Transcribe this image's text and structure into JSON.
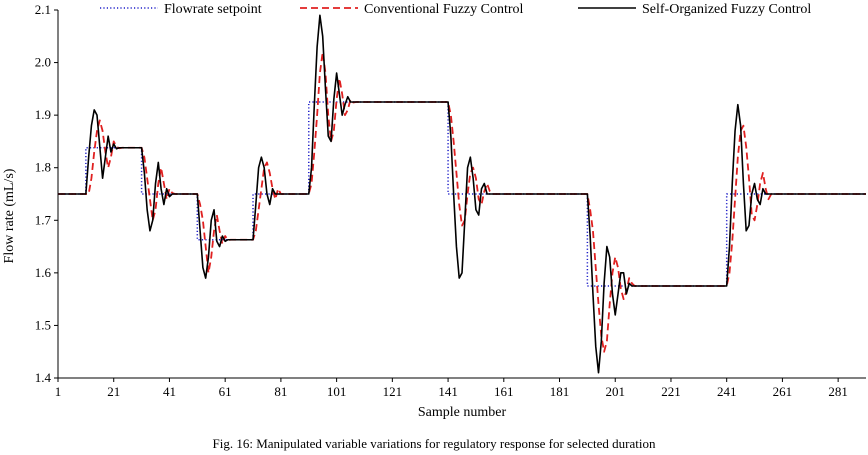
{
  "caption": "Fig. 16: Manipulated variable variations for regulatory response for selected duration",
  "chart_data": {
    "type": "line",
    "title": "",
    "xlabel": "Sample number",
    "ylabel": "Flow rate (mL/s)",
    "xlim": [
      1,
      291
    ],
    "ylim": [
      1.4,
      2.1
    ],
    "xticks": [
      1,
      21,
      41,
      61,
      81,
      101,
      121,
      141,
      161,
      181,
      201,
      221,
      241,
      261,
      281
    ],
    "yticks": [
      1.4,
      1.5,
      1.6,
      1.7,
      1.8,
      1.9,
      2.0,
      2.1
    ],
    "ytick_labels": [
      "1.4",
      "1.5",
      "1.6",
      "1.7",
      "1.8",
      "1.9",
      "2.0",
      "2.1"
    ],
    "grid": false,
    "legend_position": "top",
    "series": [
      {
        "name": "Flowrate setpoint",
        "color": "#1f1fc8",
        "style": "dotted",
        "points": [
          [
            1,
            1.75
          ],
          [
            11,
            1.75
          ],
          [
            11,
            1.838
          ],
          [
            31,
            1.838
          ],
          [
            31,
            1.75
          ],
          [
            51,
            1.75
          ],
          [
            51,
            1.663
          ],
          [
            71,
            1.663
          ],
          [
            71,
            1.75
          ],
          [
            91,
            1.75
          ],
          [
            91,
            1.925
          ],
          [
            141,
            1.925
          ],
          [
            141,
            1.75
          ],
          [
            191,
            1.75
          ],
          [
            191,
            1.575
          ],
          [
            241,
            1.575
          ],
          [
            241,
            1.75
          ],
          [
            291,
            1.75
          ]
        ]
      },
      {
        "name": "Conventional Fuzzy Control",
        "color": "#e02020",
        "style": "dashed",
        "points": [
          [
            1,
            1.75
          ],
          [
            12,
            1.75
          ],
          [
            13,
            1.78
          ],
          [
            14,
            1.83
          ],
          [
            15,
            1.87
          ],
          [
            16,
            1.89
          ],
          [
            17,
            1.87
          ],
          [
            18,
            1.83
          ],
          [
            19,
            1.8
          ],
          [
            20,
            1.82
          ],
          [
            21,
            1.85
          ],
          [
            22,
            1.84
          ],
          [
            23,
            1.837
          ],
          [
            24,
            1.838
          ],
          [
            31,
            1.838
          ],
          [
            32,
            1.82
          ],
          [
            33,
            1.78
          ],
          [
            34,
            1.74
          ],
          [
            35,
            1.7
          ],
          [
            36,
            1.72
          ],
          [
            37,
            1.77
          ],
          [
            38,
            1.8
          ],
          [
            39,
            1.77
          ],
          [
            40,
            1.74
          ],
          [
            41,
            1.76
          ],
          [
            42,
            1.752
          ],
          [
            43,
            1.75
          ],
          [
            51,
            1.75
          ],
          [
            52,
            1.73
          ],
          [
            53,
            1.7
          ],
          [
            54,
            1.65
          ],
          [
            55,
            1.6
          ],
          [
            56,
            1.63
          ],
          [
            57,
            1.68
          ],
          [
            58,
            1.71
          ],
          [
            59,
            1.68
          ],
          [
            60,
            1.655
          ],
          [
            61,
            1.67
          ],
          [
            62,
            1.662
          ],
          [
            63,
            1.663
          ],
          [
            71,
            1.663
          ],
          [
            72,
            1.68
          ],
          [
            73,
            1.72
          ],
          [
            74,
            1.76
          ],
          [
            75,
            1.8
          ],
          [
            76,
            1.81
          ],
          [
            77,
            1.79
          ],
          [
            78,
            1.76
          ],
          [
            79,
            1.74
          ],
          [
            80,
            1.76
          ],
          [
            81,
            1.75
          ],
          [
            91,
            1.75
          ],
          [
            92,
            1.77
          ],
          [
            93,
            1.83
          ],
          [
            94,
            1.9
          ],
          [
            95,
            1.98
          ],
          [
            96,
            2.02
          ],
          [
            97,
            1.98
          ],
          [
            98,
            1.9
          ],
          [
            99,
            1.85
          ],
          [
            100,
            1.87
          ],
          [
            101,
            1.93
          ],
          [
            102,
            1.97
          ],
          [
            103,
            1.94
          ],
          [
            104,
            1.9
          ],
          [
            105,
            1.91
          ],
          [
            106,
            1.93
          ],
          [
            107,
            1.924
          ],
          [
            108,
            1.925
          ],
          [
            141,
            1.925
          ],
          [
            142,
            1.9
          ],
          [
            143,
            1.85
          ],
          [
            144,
            1.79
          ],
          [
            145,
            1.73
          ],
          [
            146,
            1.69
          ],
          [
            147,
            1.7
          ],
          [
            148,
            1.75
          ],
          [
            149,
            1.79
          ],
          [
            150,
            1.8
          ],
          [
            151,
            1.78
          ],
          [
            152,
            1.74
          ],
          [
            153,
            1.73
          ],
          [
            154,
            1.755
          ],
          [
            155,
            1.77
          ],
          [
            156,
            1.755
          ],
          [
            157,
            1.75
          ],
          [
            191,
            1.75
          ],
          [
            192,
            1.72
          ],
          [
            193,
            1.68
          ],
          [
            194,
            1.61
          ],
          [
            195,
            1.54
          ],
          [
            196,
            1.48
          ],
          [
            197,
            1.45
          ],
          [
            198,
            1.47
          ],
          [
            199,
            1.54
          ],
          [
            200,
            1.6
          ],
          [
            201,
            1.63
          ],
          [
            202,
            1.61
          ],
          [
            203,
            1.57
          ],
          [
            204,
            1.55
          ],
          [
            205,
            1.565
          ],
          [
            206,
            1.59
          ],
          [
            207,
            1.58
          ],
          [
            208,
            1.575
          ],
          [
            241,
            1.575
          ],
          [
            242,
            1.6
          ],
          [
            243,
            1.66
          ],
          [
            244,
            1.74
          ],
          [
            245,
            1.82
          ],
          [
            246,
            1.87
          ],
          [
            247,
            1.88
          ],
          [
            248,
            1.84
          ],
          [
            249,
            1.78
          ],
          [
            250,
            1.71
          ],
          [
            251,
            1.7
          ],
          [
            252,
            1.73
          ],
          [
            253,
            1.77
          ],
          [
            254,
            1.79
          ],
          [
            255,
            1.76
          ],
          [
            256,
            1.74
          ],
          [
            257,
            1.75
          ],
          [
            291,
            1.75
          ]
        ]
      },
      {
        "name": "Self-Organized Fuzzy Control",
        "color": "#000000",
        "style": "solid",
        "points": [
          [
            1,
            1.75
          ],
          [
            11,
            1.75
          ],
          [
            12,
            1.82
          ],
          [
            13,
            1.88
          ],
          [
            14,
            1.91
          ],
          [
            15,
            1.9
          ],
          [
            16,
            1.84
          ],
          [
            17,
            1.78
          ],
          [
            18,
            1.82
          ],
          [
            19,
            1.86
          ],
          [
            20,
            1.83
          ],
          [
            21,
            1.845
          ],
          [
            22,
            1.836
          ],
          [
            23,
            1.838
          ],
          [
            31,
            1.838
          ],
          [
            32,
            1.79
          ],
          [
            33,
            1.72
          ],
          [
            34,
            1.68
          ],
          [
            35,
            1.7
          ],
          [
            36,
            1.77
          ],
          [
            37,
            1.81
          ],
          [
            38,
            1.76
          ],
          [
            39,
            1.73
          ],
          [
            40,
            1.76
          ],
          [
            41,
            1.745
          ],
          [
            42,
            1.75
          ],
          [
            51,
            1.75
          ],
          [
            52,
            1.68
          ],
          [
            53,
            1.61
          ],
          [
            54,
            1.59
          ],
          [
            55,
            1.63
          ],
          [
            56,
            1.7
          ],
          [
            57,
            1.72
          ],
          [
            58,
            1.66
          ],
          [
            59,
            1.65
          ],
          [
            60,
            1.67
          ],
          [
            61,
            1.66
          ],
          [
            62,
            1.663
          ],
          [
            71,
            1.663
          ],
          [
            72,
            1.73
          ],
          [
            73,
            1.8
          ],
          [
            74,
            1.82
          ],
          [
            75,
            1.8
          ],
          [
            76,
            1.75
          ],
          [
            77,
            1.73
          ],
          [
            78,
            1.76
          ],
          [
            79,
            1.75
          ],
          [
            91,
            1.75
          ],
          [
            92,
            1.8
          ],
          [
            93,
            1.92
          ],
          [
            94,
            2.03
          ],
          [
            95,
            2.09
          ],
          [
            96,
            2.05
          ],
          [
            97,
            1.95
          ],
          [
            98,
            1.86
          ],
          [
            99,
            1.85
          ],
          [
            100,
            1.93
          ],
          [
            101,
            1.98
          ],
          [
            102,
            1.94
          ],
          [
            103,
            1.9
          ],
          [
            104,
            1.92
          ],
          [
            105,
            1.935
          ],
          [
            106,
            1.925
          ],
          [
            141,
            1.925
          ],
          [
            142,
            1.86
          ],
          [
            143,
            1.75
          ],
          [
            144,
            1.65
          ],
          [
            145,
            1.59
          ],
          [
            146,
            1.6
          ],
          [
            147,
            1.7
          ],
          [
            148,
            1.8
          ],
          [
            149,
            1.82
          ],
          [
            150,
            1.78
          ],
          [
            151,
            1.72
          ],
          [
            152,
            1.71
          ],
          [
            153,
            1.76
          ],
          [
            154,
            1.77
          ],
          [
            155,
            1.75
          ],
          [
            191,
            1.75
          ],
          [
            192,
            1.67
          ],
          [
            193,
            1.56
          ],
          [
            194,
            1.46
          ],
          [
            195,
            1.41
          ],
          [
            196,
            1.47
          ],
          [
            197,
            1.58
          ],
          [
            198,
            1.65
          ],
          [
            199,
            1.63
          ],
          [
            200,
            1.56
          ],
          [
            201,
            1.52
          ],
          [
            202,
            1.56
          ],
          [
            203,
            1.6
          ],
          [
            204,
            1.6
          ],
          [
            205,
            1.56
          ],
          [
            206,
            1.58
          ],
          [
            207,
            1.575
          ],
          [
            241,
            1.575
          ],
          [
            242,
            1.65
          ],
          [
            243,
            1.77
          ],
          [
            244,
            1.87
          ],
          [
            245,
            1.92
          ],
          [
            246,
            1.88
          ],
          [
            247,
            1.77
          ],
          [
            248,
            1.68
          ],
          [
            249,
            1.69
          ],
          [
            250,
            1.75
          ],
          [
            251,
            1.77
          ],
          [
            252,
            1.74
          ],
          [
            253,
            1.73
          ],
          [
            254,
            1.76
          ],
          [
            255,
            1.75
          ],
          [
            291,
            1.75
          ]
        ]
      }
    ]
  }
}
